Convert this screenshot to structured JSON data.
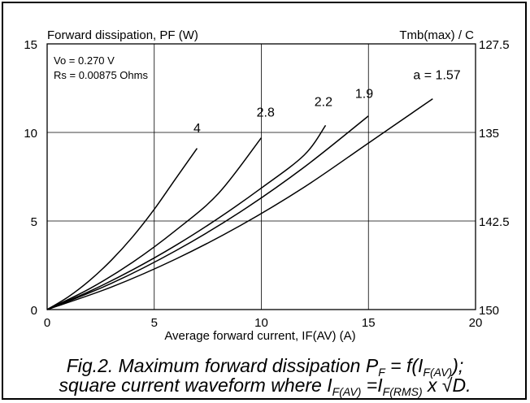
{
  "chart_data": {
    "type": "line",
    "title": "",
    "ylabel": "Forward dissipation, PF (W)",
    "xlabel": "Average forward current, IF(AV) (A)",
    "y2label": "Tmb(max) / C",
    "xlim": [
      0,
      20
    ],
    "ylim": [
      0,
      15
    ],
    "x_ticks": [
      "0",
      "5",
      "10",
      "15",
      "20"
    ],
    "y_ticks": [
      "0",
      "5",
      "10",
      "15"
    ],
    "y2_ticks": [
      "150",
      "142.5",
      "135",
      "127.5"
    ],
    "grid": true,
    "params": [
      "Vo = 0.270 V",
      "Rs = 0.00875 Ohms"
    ],
    "series": [
      {
        "name": "4",
        "x": [
          0,
          1,
          2,
          3,
          4,
          5,
          6,
          7
        ],
        "y": [
          0,
          0.73,
          1.66,
          2.79,
          4.12,
          5.66,
          7.39,
          9.1
        ]
      },
      {
        "name": "2.8",
        "x": [
          0,
          2,
          4,
          6,
          8,
          10
        ],
        "y": [
          0,
          1.19,
          2.68,
          4.47,
          6.56,
          9.7
        ]
      },
      {
        "name": "2.2",
        "x": [
          0,
          2,
          4,
          6,
          8,
          10,
          12,
          13
        ],
        "y": [
          0,
          1.04,
          2.25,
          3.62,
          5.16,
          6.86,
          8.72,
          10.4
        ]
      },
      {
        "name": "1.9",
        "x": [
          0,
          3,
          6,
          9,
          12,
          15
        ],
        "y": [
          0,
          1.48,
          3.32,
          5.5,
          8.04,
          10.93
        ]
      },
      {
        "name": "a = 1.57",
        "x": [
          0,
          3,
          6,
          9,
          12,
          15,
          18
        ],
        "y": [
          0,
          1.27,
          2.85,
          4.73,
          6.91,
          9.4,
          11.9
        ]
      }
    ],
    "series_label_positions": [
      {
        "series": 0,
        "x": 7.0,
        "y": 10.0
      },
      {
        "series": 1,
        "x": 10.2,
        "y": 10.9
      },
      {
        "series": 2,
        "x": 12.9,
        "y": 11.5
      },
      {
        "series": 3,
        "x": 14.8,
        "y": 11.95
      },
      {
        "series": 4,
        "x": 18.2,
        "y": 13.0
      }
    ]
  },
  "caption": {
    "line1_text": "Fig.2.   Maximum forward dissipation P",
    "line1_sub": "F",
    "line1_mid": " = f(I",
    "line1_sub2": "F(AV)",
    "line1_end": ");",
    "line2_text": "square current waveform where I",
    "line2_sub": "F(AV)",
    "line2_mid": " =I",
    "line2_sub2": "F(RMS)",
    "line2_end": " x √D."
  }
}
